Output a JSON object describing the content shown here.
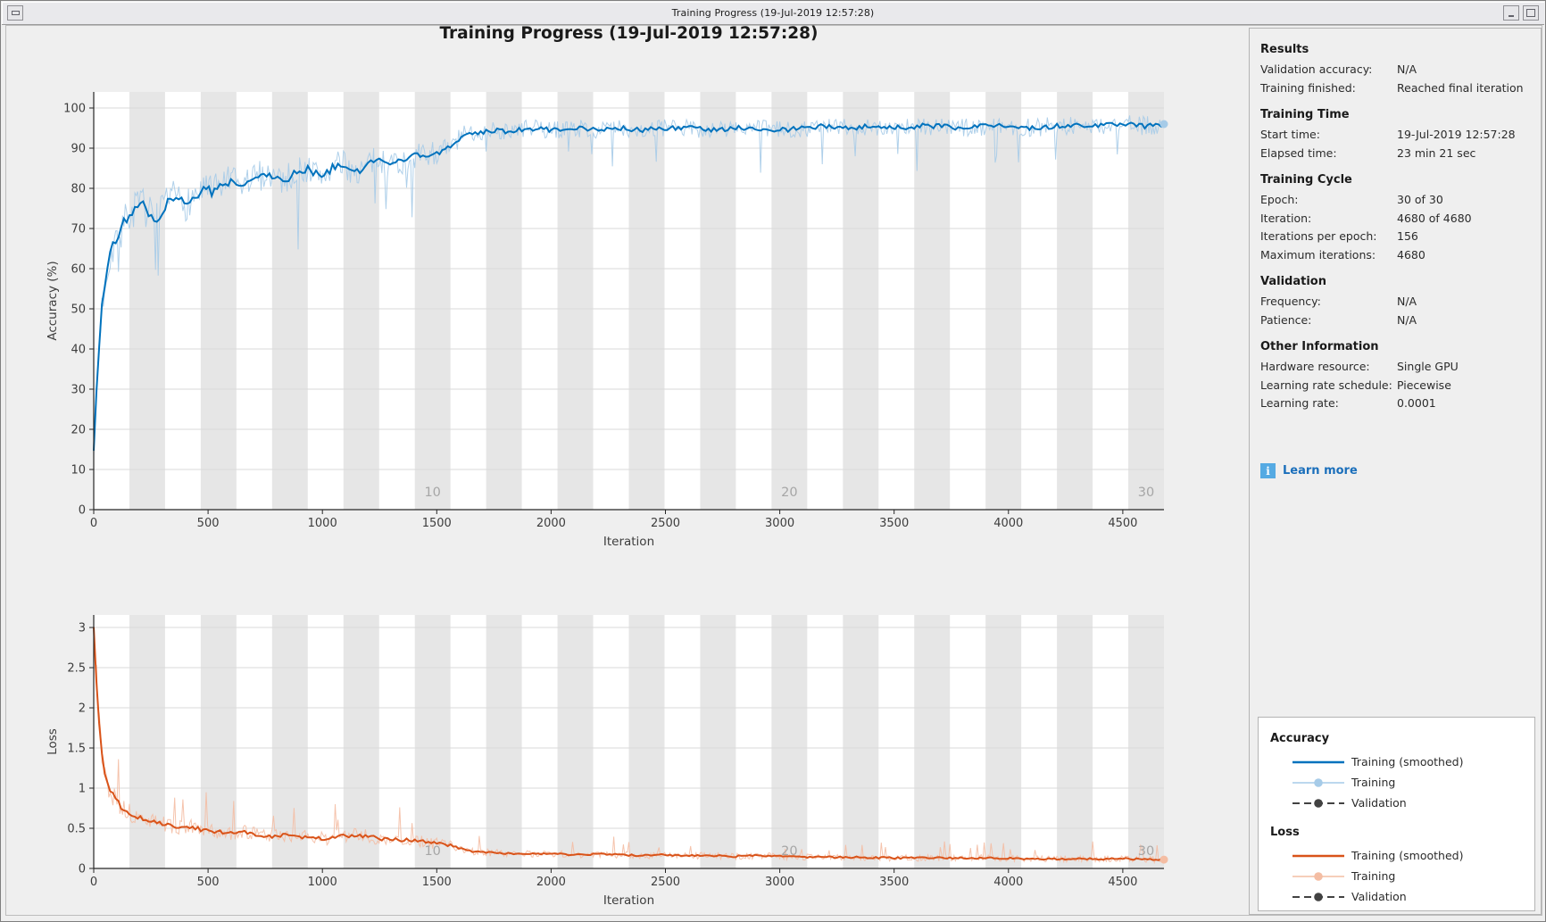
{
  "window": {
    "title": "Training Progress (19-Jul-2019 12:57:28)"
  },
  "figure": {
    "title": "Training Progress (19-Jul-2019 12:57:28)"
  },
  "palette": {
    "accent_blue": "#0072bd",
    "light_blue": "#a6cbe8",
    "accent_orange": "#d95319",
    "light_orange": "#f4bda3",
    "validation_gray": "#424242",
    "link_blue": "#1b6fbb",
    "info_icon_bg": "#55aae3",
    "band": "#e6e6e6",
    "grid": "#dadada",
    "epoch_label": "#a6a6a6",
    "axis": "#262626",
    "tick_text": "#3d3d3d"
  },
  "info_panel": {
    "sections": [
      {
        "title": "Results",
        "rows": [
          {
            "label": "Validation accuracy:",
            "value": "N/A"
          },
          {
            "label": "Training finished:",
            "value": "Reached final iteration"
          }
        ]
      },
      {
        "title": "Training Time",
        "rows": [
          {
            "label": "Start time:",
            "value": "19-Jul-2019 12:57:28"
          },
          {
            "label": "Elapsed time:",
            "value": "23 min 21 sec"
          }
        ]
      },
      {
        "title": "Training Cycle",
        "rows": [
          {
            "label": "Epoch:",
            "value": "30 of 30"
          },
          {
            "label": "Iteration:",
            "value": "4680 of 4680"
          },
          {
            "label": "Iterations per epoch:",
            "value": "156"
          },
          {
            "label": "Maximum iterations:",
            "value": "4680"
          }
        ]
      },
      {
        "title": "Validation",
        "rows": [
          {
            "label": "Frequency:",
            "value": "N/A"
          },
          {
            "label": "Patience:",
            "value": "N/A"
          }
        ]
      },
      {
        "title": "Other Information",
        "rows": [
          {
            "label": "Hardware resource:",
            "value": "Single GPU"
          },
          {
            "label": "Learning rate schedule:",
            "value": "Piecewise"
          },
          {
            "label": "Learning rate:",
            "value": "0.0001"
          }
        ]
      }
    ],
    "learn_more_label": "Learn more"
  },
  "legend": {
    "groups": [
      {
        "title": "Accuracy",
        "entries": [
          {
            "label": "Training (smoothed)",
            "style": "smoothed",
            "color": "accent_blue"
          },
          {
            "label": "Training",
            "style": "raw",
            "color": "light_blue"
          },
          {
            "label": "Validation",
            "style": "validation",
            "color": "validation_gray"
          }
        ]
      },
      {
        "title": "Loss",
        "entries": [
          {
            "label": "Training (smoothed)",
            "style": "smoothed",
            "color": "accent_orange"
          },
          {
            "label": "Training",
            "style": "raw",
            "color": "light_orange"
          },
          {
            "label": "Validation",
            "style": "validation",
            "color": "validation_gray"
          }
        ]
      }
    ]
  },
  "chart_data": [
    {
      "id": "accuracy",
      "type": "line",
      "xlabel": "Iteration",
      "ylabel": "Accuracy (%)",
      "xlim": [
        0,
        4680
      ],
      "ylim": [
        0,
        104
      ],
      "xticks": [
        0,
        500,
        1000,
        1500,
        2000,
        2500,
        3000,
        3500,
        4000,
        4500
      ],
      "yticks": [
        0,
        10,
        20,
        30,
        40,
        50,
        60,
        70,
        80,
        90,
        100
      ],
      "grid": "horizontal",
      "epochs": {
        "count": 30,
        "iterations_per_epoch": 156,
        "shaded": "even",
        "labels": [
          {
            "epoch": 10,
            "text": "10"
          },
          {
            "epoch": 20,
            "text": "20"
          },
          {
            "epoch": 30,
            "text": "30"
          }
        ]
      },
      "series": [
        {
          "name": "Training",
          "style": "raw",
          "color": "light_blue",
          "end_marker": true
        },
        {
          "name": "Training (smoothed)",
          "style": "smoothed",
          "color": "accent_blue"
        }
      ],
      "smoothed_anchors": [
        [
          0,
          15
        ],
        [
          8,
          25
        ],
        [
          20,
          38
        ],
        [
          35,
          50
        ],
        [
          50,
          57
        ],
        [
          70,
          63
        ],
        [
          90,
          67
        ],
        [
          120,
          70
        ],
        [
          150,
          73
        ],
        [
          180,
          75
        ],
        [
          210,
          76
        ],
        [
          240,
          74
        ],
        [
          270,
          72
        ],
        [
          300,
          74
        ],
        [
          330,
          77
        ],
        [
          360,
          78
        ],
        [
          400,
          76
        ],
        [
          440,
          78
        ],
        [
          480,
          80
        ],
        [
          520,
          79
        ],
        [
          560,
          81
        ],
        [
          600,
          82
        ],
        [
          640,
          80
        ],
        [
          680,
          82
        ],
        [
          720,
          83
        ],
        [
          760,
          84
        ],
        [
          800,
          83
        ],
        [
          840,
          82
        ],
        [
          880,
          84
        ],
        [
          920,
          85
        ],
        [
          960,
          84
        ],
        [
          1000,
          83
        ],
        [
          1040,
          85
        ],
        [
          1080,
          86
        ],
        [
          1120,
          85
        ],
        [
          1160,
          84
        ],
        [
          1200,
          86
        ],
        [
          1240,
          87
        ],
        [
          1280,
          86
        ],
        [
          1320,
          87
        ],
        [
          1360,
          86
        ],
        [
          1400,
          88
        ],
        [
          1440,
          88
        ],
        [
          1480,
          89
        ],
        [
          1520,
          89
        ],
        [
          1560,
          90
        ],
        [
          1590,
          92
        ],
        [
          1620,
          93
        ],
        [
          1660,
          94
        ],
        [
          1700,
          94
        ],
        [
          1750,
          94.5
        ],
        [
          1800,
          94
        ],
        [
          1900,
          95
        ],
        [
          2000,
          94.5
        ],
        [
          2100,
          95
        ],
        [
          2200,
          94.5
        ],
        [
          2300,
          95
        ],
        [
          2400,
          94.5
        ],
        [
          2500,
          95
        ],
        [
          2600,
          95
        ],
        [
          2700,
          94.5
        ],
        [
          2800,
          95
        ],
        [
          2900,
          95
        ],
        [
          3000,
          94.5
        ],
        [
          3120,
          95
        ],
        [
          3200,
          95.5
        ],
        [
          3300,
          95
        ],
        [
          3400,
          95.5
        ],
        [
          3500,
          95
        ],
        [
          3600,
          95.5
        ],
        [
          3700,
          95.5
        ],
        [
          3800,
          95
        ],
        [
          3900,
          95.5
        ],
        [
          4000,
          95.5
        ],
        [
          4100,
          95
        ],
        [
          4200,
          95.5
        ],
        [
          4300,
          95.5
        ],
        [
          4400,
          95.5
        ],
        [
          4500,
          96
        ],
        [
          4600,
          95.5
        ],
        [
          4680,
          96
        ]
      ],
      "noise_anchors": [
        [
          0,
          2
        ],
        [
          40,
          4.5
        ],
        [
          100,
          5
        ],
        [
          200,
          4.5
        ],
        [
          600,
          4
        ],
        [
          1200,
          3.5
        ],
        [
          1560,
          3
        ],
        [
          1700,
          2.2
        ],
        [
          3000,
          2.2
        ],
        [
          4680,
          2.4
        ]
      ],
      "spike": -2.2,
      "clamp": [
        0,
        100
      ],
      "final_value": "96"
    },
    {
      "id": "loss",
      "type": "line",
      "xlabel": "Iteration",
      "ylabel": "Loss",
      "xlim": [
        0,
        4680
      ],
      "ylim": [
        0,
        3.156
      ],
      "xticks": [
        0,
        500,
        1000,
        1500,
        2000,
        2500,
        3000,
        3500,
        4000,
        4500
      ],
      "yticks": [
        0,
        0.5,
        1,
        1.5,
        2,
        2.5,
        3
      ],
      "grid": "horizontal",
      "epochs": {
        "count": 30,
        "iterations_per_epoch": 156,
        "shaded": "even",
        "labels": [
          {
            "epoch": 10,
            "text": "10"
          },
          {
            "epoch": 20,
            "text": "20"
          },
          {
            "epoch": 30,
            "text": "30"
          }
        ]
      },
      "series": [
        {
          "name": "Training",
          "style": "raw",
          "color": "light_orange",
          "end_marker": true
        },
        {
          "name": "Training (smoothed)",
          "style": "smoothed",
          "color": "accent_orange"
        }
      ],
      "smoothed_anchors": [
        [
          0,
          3.0
        ],
        [
          8,
          2.5
        ],
        [
          16,
          2.1
        ],
        [
          24,
          1.8
        ],
        [
          32,
          1.55
        ],
        [
          40,
          1.35
        ],
        [
          50,
          1.18
        ],
        [
          60,
          1.05
        ],
        [
          75,
          0.95
        ],
        [
          90,
          0.88
        ],
        [
          110,
          0.8
        ],
        [
          130,
          0.74
        ],
        [
          150,
          0.7
        ],
        [
          180,
          0.65
        ],
        [
          210,
          0.62
        ],
        [
          240,
          0.6
        ],
        [
          270,
          0.58
        ],
        [
          300,
          0.56
        ],
        [
          340,
          0.53
        ],
        [
          380,
          0.5
        ],
        [
          420,
          0.52
        ],
        [
          460,
          0.49
        ],
        [
          500,
          0.47
        ],
        [
          550,
          0.45
        ],
        [
          600,
          0.44
        ],
        [
          650,
          0.46
        ],
        [
          700,
          0.43
        ],
        [
          750,
          0.41
        ],
        [
          800,
          0.4
        ],
        [
          850,
          0.42
        ],
        [
          900,
          0.39
        ],
        [
          950,
          0.38
        ],
        [
          1000,
          0.37
        ],
        [
          1050,
          0.39
        ],
        [
          1100,
          0.4
        ],
        [
          1150,
          0.42
        ],
        [
          1200,
          0.4
        ],
        [
          1250,
          0.37
        ],
        [
          1300,
          0.35
        ],
        [
          1350,
          0.36
        ],
        [
          1400,
          0.34
        ],
        [
          1450,
          0.33
        ],
        [
          1500,
          0.31
        ],
        [
          1560,
          0.29
        ],
        [
          1600,
          0.25
        ],
        [
          1650,
          0.22
        ],
        [
          1700,
          0.2
        ],
        [
          1800,
          0.19
        ],
        [
          1900,
          0.18
        ],
        [
          2000,
          0.18
        ],
        [
          2100,
          0.17
        ],
        [
          2200,
          0.18
        ],
        [
          2300,
          0.17
        ],
        [
          2400,
          0.16
        ],
        [
          2500,
          0.17
        ],
        [
          2600,
          0.16
        ],
        [
          2700,
          0.16
        ],
        [
          2800,
          0.15
        ],
        [
          2900,
          0.16
        ],
        [
          3000,
          0.15
        ],
        [
          3120,
          0.14
        ],
        [
          3300,
          0.14
        ],
        [
          3500,
          0.13
        ],
        [
          3700,
          0.13
        ],
        [
          3900,
          0.13
        ],
        [
          4100,
          0.12
        ],
        [
          4300,
          0.12
        ],
        [
          4500,
          0.12
        ],
        [
          4680,
          0.11
        ]
      ],
      "noise_anchors": [
        [
          0,
          0.08
        ],
        [
          30,
          0.2
        ],
        [
          80,
          0.14
        ],
        [
          200,
          0.1
        ],
        [
          600,
          0.09
        ],
        [
          1200,
          0.09
        ],
        [
          1560,
          0.07
        ],
        [
          1700,
          0.045
        ],
        [
          3000,
          0.04
        ],
        [
          4680,
          0.04
        ]
      ],
      "spike": 2.5,
      "clamp": [
        0.025,
        3.155
      ],
      "final_value": "0.11"
    }
  ]
}
